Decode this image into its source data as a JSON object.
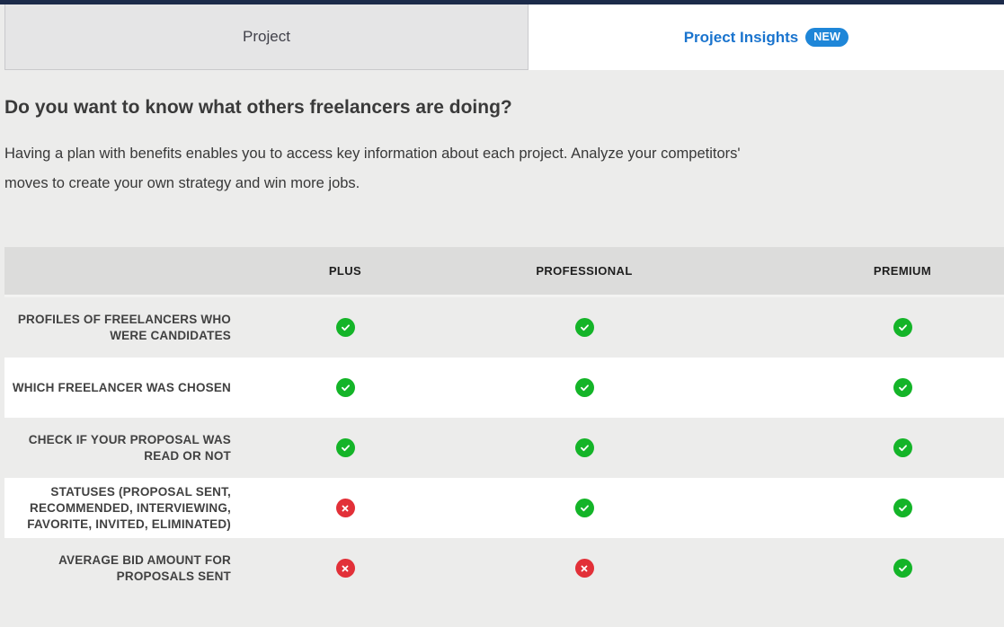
{
  "topbar": {
    "color": "#1c2b4a"
  },
  "tabs": [
    {
      "label": "Project",
      "active": false
    },
    {
      "label": "Project Insights",
      "badge": "NEW",
      "active": true
    }
  ],
  "intro": {
    "heading": "Do you want to know what others freelancers are doing?",
    "body_lines": [
      "Having a plan with benefits enables you to access key information about each project. Analyze your competitors'",
      "moves to create your own strategy and win more jobs."
    ]
  },
  "comparison_table": {
    "columns": [
      "PLUS",
      "PROFESSIONAL",
      "PREMIUM"
    ],
    "rows": [
      {
        "label": "PROFILES OF FREELANCERS WHO WERE CANDIDATES",
        "values": [
          true,
          true,
          true
        ]
      },
      {
        "label": "WHICH FREELANCER WAS CHOSEN",
        "values": [
          true,
          true,
          true
        ]
      },
      {
        "label": "CHECK IF YOUR PROPOSAL WAS READ OR NOT",
        "values": [
          true,
          true,
          true
        ]
      },
      {
        "label": "STATUSES (PROPOSAL SENT, RECOMMENDED, INTERVIEWING, FAVORITE, INVITED, ELIMINATED)",
        "values": [
          false,
          true,
          true
        ]
      },
      {
        "label": "AVERAGE BID AMOUNT FOR PROPOSALS SENT",
        "values": [
          false,
          false,
          true
        ]
      }
    ],
    "icons": {
      "yes": "check-circle",
      "no": "cross-circle"
    },
    "colors": {
      "yes_green": "#14b428",
      "no_red": "#e23038",
      "link_blue": "#1a74ce",
      "badge_blue": "#1e86d8",
      "page_bg": "#ececeb"
    }
  }
}
